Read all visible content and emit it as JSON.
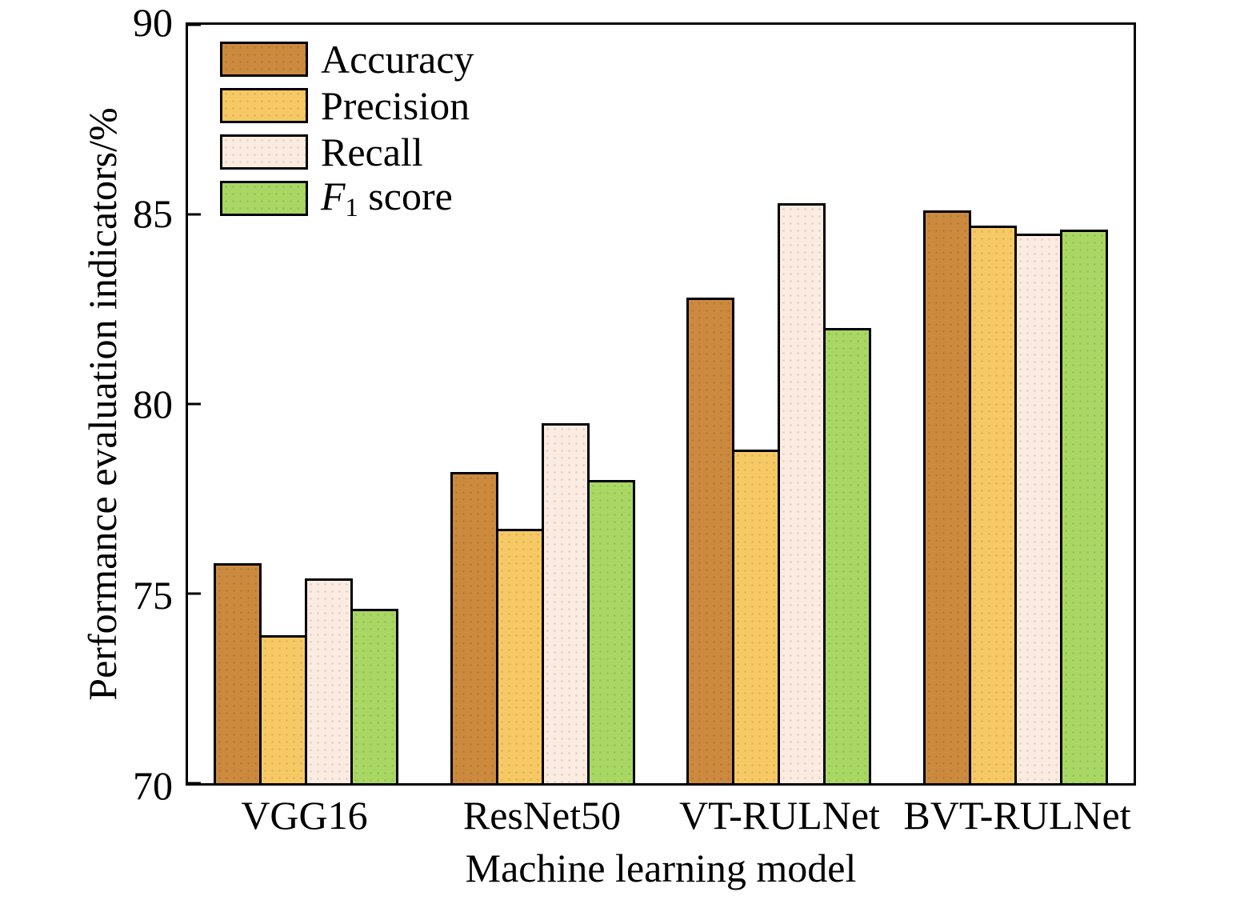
{
  "chart_data": {
    "type": "bar",
    "title": "",
    "xlabel": "Machine learning model",
    "ylabel": "Performance evaluation indicators/%",
    "ylim": [
      70,
      90
    ],
    "yticks": [
      70,
      75,
      80,
      85,
      90
    ],
    "grid": false,
    "legend_position": "top-left",
    "categories": [
      "VGG16",
      "ResNet50",
      "VT-RULNet",
      "BVT-RULNet"
    ],
    "series": [
      {
        "name": "Accuracy",
        "color": "#cb8a3e",
        "values": [
          75.8,
          78.2,
          82.8,
          85.1
        ]
      },
      {
        "name": "Precision",
        "color": "#f6c964",
        "values": [
          73.9,
          76.7,
          78.8,
          84.7
        ]
      },
      {
        "name": "Recall",
        "color": "#fbebe1",
        "values": [
          75.4,
          79.5,
          85.3,
          84.5
        ]
      },
      {
        "name": "F1 score",
        "color": "#a8d763",
        "values": [
          74.6,
          78.0,
          82.0,
          84.6
        ],
        "label_parts": [
          {
            "t": "F",
            "style": "italic"
          },
          {
            "t": "1",
            "style": "sub"
          },
          {
            "t": " score",
            "style": "normal"
          }
        ]
      }
    ]
  }
}
